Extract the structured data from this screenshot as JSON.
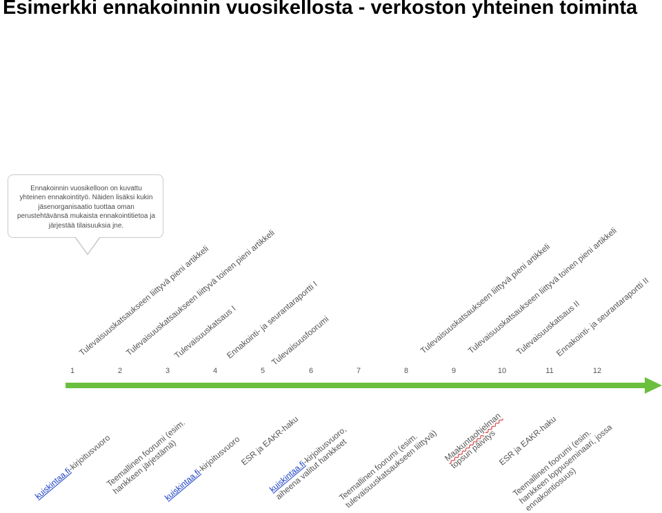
{
  "title": "Esimerkki ennakoinnin vuosikellosta - verkoston yhteinen toiminta",
  "callout": {
    "lines": [
      "Ennakoinnin vuosikelloon on kuvattu",
      "yhteinen ennakointityö. Näiden lisäksi kukin",
      "jäsenorganisaatio tuottaa oman",
      "perustehtävänsä mukaista ennakointitietoa ja",
      "järjestää tilaisuuksia jne."
    ]
  },
  "timeline": {
    "months": [
      "1",
      "2",
      "3",
      "4",
      "5",
      "6",
      "7",
      "8",
      "9",
      "10",
      "11",
      "12"
    ],
    "arrow_color": "#6bbf3f"
  },
  "top_events": [
    {
      "text": "Tulevaisuuskatsaukseen liittyvä pieni artikkeli"
    },
    {
      "text": "Tulevaisuuskatsaukseen liittyvä toinen pieni artikkeli"
    },
    {
      "text": "Tulevaisuuskatsaus I"
    },
    {
      "text": "Ennakointi- ja seurantaraportti I"
    },
    {
      "text": "Tulevaisuusfoorumi"
    },
    {
      "text": "Tulevaisuuskatsaukseen liittyvä pieni artikkeli"
    },
    {
      "text": "Tulevaisuuskatsaukseen liittyvä toinen pieni artikkeli"
    },
    {
      "text": "Tulevaisuuskatsaus II"
    },
    {
      "text": "Ennakointi- ja seurantaraportti II"
    }
  ],
  "bottom_events": [
    {
      "link": "kuiskintaa.fi",
      "rest": "-kirjoitusvuoro"
    },
    {
      "line1": "Teemallinen foorumi (esim.",
      "line2": "hankkeen järjestämä)"
    },
    {
      "link": "kuiskintaa.fi",
      "rest": "-kirjoitusvuoro"
    },
    {
      "text": "ESR ja EAKR-haku"
    },
    {
      "link": "kuiskintaa.fi",
      "rest": "-kirjoitusvuoro,",
      "line2": "aiheena valitut hankkeet"
    },
    {
      "line1": "Teemallinen foorumi (esim.",
      "line2": "tulevaisuuskatsaukseen liittyvä)"
    },
    {
      "line1": "Maakuntaohjelman",
      "line2": "topsun päivitys"
    },
    {
      "text": "ESR ja EAKR-haku"
    },
    {
      "line1": "Teemallinen foorumi (esim.",
      "line2": "hankkeen loppuseminaari, jossa",
      "line3": "ennakointiosuus)"
    }
  ]
}
